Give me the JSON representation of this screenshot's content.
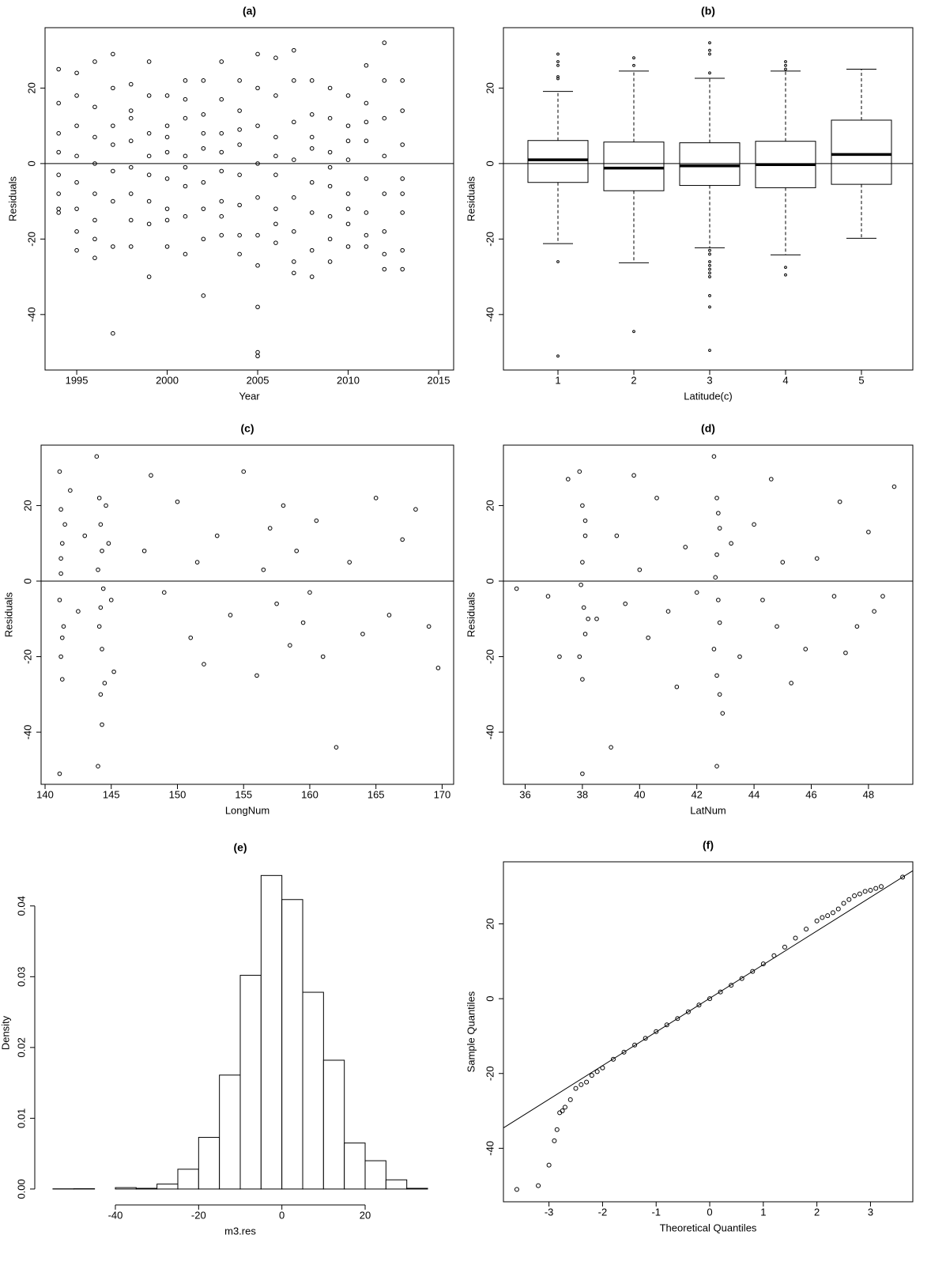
{
  "chart_data": [
    {
      "type": "scatter",
      "title": "(a)",
      "x_label": "Year",
      "y_label": "Residuals",
      "xlim": [
        1993.25,
        2015.83
      ],
      "ylim": [
        -54.7,
        36
      ],
      "xticks": [
        1995,
        2000,
        2005,
        2010,
        2015
      ],
      "yticks": [
        -40,
        -20,
        0,
        20
      ],
      "hline": 0,
      "x": [
        1994,
        1994,
        1994,
        1994,
        1994,
        1994,
        1994,
        1994,
        1995,
        1995,
        1995,
        1995,
        1995,
        1995,
        1995,
        1995,
        1996,
        1996,
        1996,
        1996,
        1996,
        1996,
        1996,
        1996,
        1997,
        1997,
        1997,
        1997,
        1997,
        1997,
        1997,
        1997,
        1998,
        1998,
        1998,
        1998,
        1998,
        1998,
        1998,
        1998,
        1999,
        1999,
        1999,
        1999,
        1999,
        1999,
        1999,
        1999,
        2000,
        2000,
        2000,
        2000,
        2000,
        2000,
        2000,
        2000,
        2001,
        2001,
        2001,
        2001,
        2001,
        2001,
        2001,
        2001,
        2002,
        2002,
        2002,
        2002,
        2002,
        2002,
        2002,
        2002,
        2003,
        2003,
        2003,
        2003,
        2003,
        2003,
        2003,
        2003,
        2004,
        2004,
        2004,
        2004,
        2004,
        2004,
        2004,
        2004,
        2005,
        2005,
        2005,
        2005,
        2005,
        2005,
        2005,
        2005,
        2005,
        2005,
        2006,
        2006,
        2006,
        2006,
        2006,
        2006,
        2006,
        2006,
        2007,
        2007,
        2007,
        2007,
        2007,
        2007,
        2007,
        2007,
        2008,
        2008,
        2008,
        2008,
        2008,
        2008,
        2008,
        2008,
        2009,
        2009,
        2009,
        2009,
        2009,
        2009,
        2009,
        2009,
        2010,
        2010,
        2010,
        2010,
        2010,
        2010,
        2010,
        2010,
        2011,
        2011,
        2011,
        2011,
        2011,
        2011,
        2011,
        2011,
        2012,
        2012,
        2012,
        2012,
        2012,
        2012,
        2012,
        2012,
        2013,
        2013,
        2013,
        2013,
        2013,
        2013,
        2013,
        2013
      ],
      "values": [
        25,
        16,
        8,
        3,
        -3,
        -8,
        -12,
        -13,
        24,
        18,
        10,
        2,
        -5,
        -12,
        -18,
        -23,
        27,
        15,
        7,
        0,
        -8,
        -15,
        -20,
        -25,
        29,
        20,
        10,
        -2,
        -10,
        -22,
        -45,
        5,
        21,
        14,
        6,
        -1,
        -8,
        -15,
        -22,
        12,
        27,
        18,
        8,
        -3,
        -10,
        -16,
        -30,
        2,
        18,
        10,
        3,
        -4,
        -12,
        -22,
        7,
        -15,
        22,
        12,
        2,
        -6,
        -14,
        -24,
        17,
        -1,
        22,
        13,
        4,
        -5,
        -12,
        -20,
        -35,
        8,
        27,
        17,
        8,
        -2,
        -10,
        -19,
        3,
        -14,
        22,
        14,
        5,
        -3,
        -11,
        -19,
        -24,
        9,
        29,
        20,
        10,
        0,
        -9,
        -19,
        -27,
        -38,
        -50,
        -51,
        28,
        18,
        7,
        -3,
        -12,
        -21,
        2,
        -16,
        30,
        22,
        11,
        1,
        -9,
        -18,
        -26,
        -29,
        22,
        13,
        4,
        -5,
        -13,
        -23,
        -30,
        7,
        20,
        12,
        3,
        -6,
        -14,
        -26,
        -20,
        -1,
        18,
        10,
        1,
        -8,
        -16,
        -22,
        6,
        -12,
        26,
        16,
        6,
        -4,
        -13,
        -22,
        -19,
        11,
        32,
        22,
        12,
        2,
        -8,
        -18,
        -28,
        -24,
        22,
        14,
        5,
        -4,
        -13,
        -23,
        -28,
        -8
      ]
    },
    {
      "type": "box",
      "title": "(b)",
      "x_label": "Latitude(c)",
      "y_label": "Residuals",
      "ylim": [
        -54.7,
        36
      ],
      "yticks": [
        -40,
        -20,
        0,
        20
      ],
      "hline": 0,
      "categories": [
        "1",
        "2",
        "3",
        "4",
        "5"
      ],
      "boxes": [
        {
          "whisker_low": -21.2,
          "q1": -5.0,
          "median": 1.0,
          "q3": 6.1,
          "whisker_high": 19.1,
          "outliers": [
            22.5,
            23,
            26,
            27,
            29,
            -26,
            -51
          ]
        },
        {
          "whisker_low": -26.3,
          "q1": -7.2,
          "median": -1.2,
          "q3": 5.7,
          "whisker_high": 24.5,
          "outliers": [
            26,
            28,
            -44.5
          ]
        },
        {
          "whisker_low": -22.3,
          "q1": -5.8,
          "median": -0.6,
          "q3": 5.5,
          "whisker_high": 22.6,
          "outliers": [
            24,
            29,
            30,
            32,
            -23,
            -24,
            -26,
            -27,
            -28,
            -29,
            -30,
            -35,
            -38,
            -49.5
          ]
        },
        {
          "whisker_low": -24.2,
          "q1": -6.4,
          "median": -0.3,
          "q3": 5.9,
          "whisker_high": 24.5,
          "outliers": [
            25,
            26,
            27,
            -27.5,
            -29.5
          ]
        },
        {
          "whisker_low": -19.8,
          "q1": -5.5,
          "median": 2.4,
          "q3": 11.5,
          "whisker_high": 25,
          "outliers": []
        }
      ]
    },
    {
      "type": "scatter",
      "title": "(c)",
      "x_label": "LongNum",
      "y_label": "Residuals",
      "xlim": [
        139.7,
        170.87
      ],
      "ylim": [
        -53.8,
        36
      ],
      "xticks": [
        140,
        145,
        150,
        155,
        160,
        165,
        170
      ],
      "yticks": [
        -40,
        -20,
        0,
        20
      ],
      "hline": 0,
      "x": [
        141.1,
        141.2,
        141.3,
        141.2,
        141.1,
        141.4,
        141.2,
        141.3,
        141.5,
        141.1,
        141.2,
        141.3,
        141.9,
        142.5,
        143.0,
        143.9,
        144.1,
        144.2,
        144.3,
        144.0,
        144.4,
        144.2,
        144.1,
        144.3,
        144.5,
        144.2,
        144.0,
        144.6,
        144.3,
        144.8,
        145.0,
        145.2,
        147.5,
        148,
        149,
        150,
        151,
        151.5,
        152,
        153,
        154,
        155,
        156,
        156.5,
        157,
        157.5,
        158,
        158.5,
        159,
        159.5,
        160,
        160.5,
        161,
        162,
        163,
        164,
        165,
        166,
        167,
        168,
        169,
        169.7
      ],
      "values": [
        29,
        19,
        10,
        2,
        -5,
        -12,
        -20,
        -26,
        15,
        -51,
        6,
        -15,
        24,
        -8,
        12,
        33,
        22,
        15,
        8,
        3,
        -2,
        -7,
        -12,
        -18,
        -27,
        -30,
        -49,
        20,
        -38,
        10,
        -5,
        -24,
        8,
        28,
        -3,
        21,
        -15,
        5,
        -22,
        12,
        -9,
        29,
        -25,
        3,
        14,
        -6,
        20,
        -17,
        8,
        -11,
        -3,
        16,
        -20,
        -44,
        5,
        -14,
        22,
        -9,
        11,
        19,
        -12,
        -23
      ]
    },
    {
      "type": "scatter",
      "title": "(d)",
      "x_label": "LatNum",
      "y_label": "Residuals",
      "xlim": [
        35.24,
        49.55
      ],
      "ylim": [
        -53.8,
        36
      ],
      "xticks": [
        36,
        38,
        40,
        42,
        44,
        46,
        48
      ],
      "yticks": [
        -40,
        -20,
        0,
        20
      ],
      "hline": 0,
      "x": [
        37.9,
        38.0,
        38.1,
        38.0,
        37.95,
        38.05,
        38.1,
        37.9,
        38.0,
        38.0,
        38.1,
        38.2,
        35.7,
        36.8,
        37.2,
        37.5,
        38.5,
        39.0,
        39.2,
        39.5,
        39.8,
        40.0,
        40.3,
        40.6,
        41.0,
        41.3,
        41.6,
        42.0,
        42.6,
        42.7,
        42.8,
        42.7,
        42.65,
        42.75,
        42.8,
        42.6,
        42.7,
        42.9,
        42.7,
        42.75,
        42.8,
        43.2,
        43.5,
        44.0,
        44.3,
        44.6,
        44.8,
        45.0,
        45.3,
        45.8,
        46.2,
        46.8,
        47.0,
        47.2,
        47.6,
        48.0,
        48.2,
        48.5,
        48.9
      ],
      "values": [
        29,
        20,
        12,
        5,
        -1,
        -7,
        -14,
        -20,
        -26,
        -51,
        16,
        -10,
        -2,
        -4,
        -20,
        27,
        -10,
        -44,
        12,
        -6,
        28,
        3,
        -15,
        22,
        -8,
        -28,
        9,
        -3,
        33,
        22,
        14,
        7,
        1,
        -5,
        -11,
        -18,
        -25,
        -35,
        -49,
        18,
        -30,
        10,
        -20,
        15,
        -5,
        27,
        -12,
        5,
        -27,
        -18,
        6,
        -4,
        21,
        -19,
        -12,
        13,
        -8,
        -4,
        25
      ]
    },
    {
      "type": "histogram",
      "title": "(e)",
      "x_label": "m3.res",
      "y_label": "Density",
      "xlim": [
        -58.6,
        38.6
      ],
      "ylim": [
        -0.0018,
        0.0459
      ],
      "xticks": [
        -40,
        -20,
        0,
        20
      ],
      "yticks": [
        {
          "value": 0,
          "label": "0.00"
        },
        {
          "value": 0.01,
          "label": "0.01"
        },
        {
          "value": 0.02,
          "label": "0.02"
        },
        {
          "value": 0.03,
          "label": "0.03"
        },
        {
          "value": 0.04,
          "label": "0.04"
        }
      ],
      "bins": [
        -55,
        -50,
        -45,
        -40,
        -35,
        -30,
        -25,
        -20,
        -15,
        -10,
        -5,
        0,
        5,
        10,
        15,
        20,
        25,
        30,
        35
      ],
      "values": [
        3e-05,
        5e-05,
        0,
        0.0002,
        0.0001,
        0.0007,
        0.0028,
        0.0073,
        0.0161,
        0.0302,
        0.0443,
        0.0409,
        0.0278,
        0.0182,
        0.0065,
        0.004,
        0.0013,
        0.0001
      ]
    },
    {
      "type": "qq",
      "title": "(f)",
      "x_label": "Theoretical Quantiles",
      "y_label": "Sample Quantiles",
      "xlim": [
        -3.85,
        3.79
      ],
      "ylim": [
        -54.3,
        36.6
      ],
      "xticks": [
        -3,
        -2,
        -1,
        0,
        1,
        2,
        3
      ],
      "yticks": [
        -40,
        -20,
        0,
        20
      ],
      "qqline": {
        "intercept": 0.1,
        "slope": 9.0
      },
      "x": [
        -3.6,
        -3.2,
        -3.0,
        -2.9,
        -2.85,
        -2.8,
        -2.75,
        -2.7,
        -2.6,
        -2.5,
        -2.4,
        -2.3,
        -2.2,
        -2.1,
        -2.0,
        -1.8,
        -1.6,
        -1.4,
        -1.2,
        -1.0,
        -0.8,
        -0.6,
        -0.4,
        -0.2,
        0,
        0.2,
        0.4,
        0.6,
        0.8,
        1.0,
        1.2,
        1.4,
        1.6,
        1.8,
        2.0,
        2.1,
        2.2,
        2.3,
        2.4,
        2.5,
        2.6,
        2.7,
        2.8,
        2.9,
        3.0,
        3.1,
        3.2,
        3.6
      ],
      "values": [
        -51,
        -50,
        -44.5,
        -38,
        -35,
        -30.5,
        -30,
        -29,
        -27,
        -24,
        -23,
        -22.3,
        -20.5,
        -19.5,
        -18.5,
        -16.2,
        -14.3,
        -12.4,
        -10.6,
        -8.8,
        -7,
        -5.3,
        -3.5,
        -1.7,
        0,
        1.8,
        3.6,
        5.4,
        7.3,
        9.3,
        11.5,
        13.8,
        16.2,
        18.6,
        20.8,
        21.7,
        22.2,
        23,
        24,
        25.5,
        26.5,
        27.5,
        28,
        28.7,
        29,
        29.5,
        30,
        32.5
      ]
    }
  ]
}
